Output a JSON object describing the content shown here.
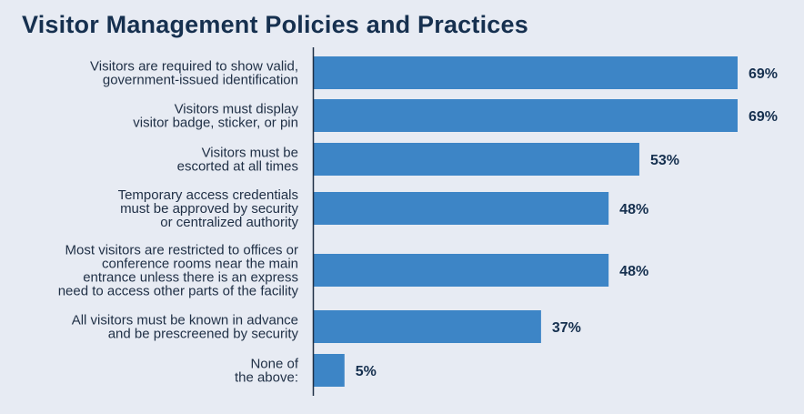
{
  "chart_data": {
    "type": "bar",
    "orientation": "horizontal",
    "title": "Visitor Management Policies and Practices",
    "categories": [
      [
        "Visitors are required to show valid,",
        "government-issued identification"
      ],
      [
        "Visitors must display",
        "visitor badge, sticker, or pin"
      ],
      [
        "Visitors must be",
        "escorted at all times"
      ],
      [
        "Temporary access credentials",
        "must be approved by security",
        "or centralized authority"
      ],
      [
        "Most visitors are restricted to offices or",
        "conference rooms near the main",
        "entrance unless there is an express",
        "need to access other parts of the facility"
      ],
      [
        "All visitors must be known in advance",
        "and be prescreened by security"
      ],
      [
        "None of",
        "the above:"
      ]
    ],
    "values": [
      69,
      69,
      53,
      48,
      48,
      37,
      5
    ],
    "value_labels": [
      "69%",
      "69%",
      "53%",
      "48%",
      "48%",
      "37%",
      "5%"
    ],
    "xlim": [
      0,
      100
    ],
    "grid": false,
    "legend": "none",
    "bar_color": "#3d85c6"
  }
}
